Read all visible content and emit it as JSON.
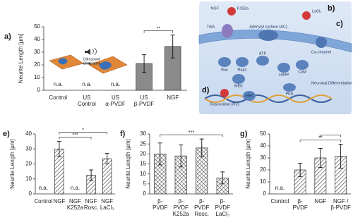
{
  "chart_data": [
    {
      "type": "bar",
      "label": "a)",
      "ylabel": "Neurite Length [μm]",
      "categories": [
        [
          "Control"
        ],
        [
          "US",
          "Control"
        ],
        [
          "US",
          "α-PVDF"
        ],
        [
          "US",
          "β-PVDF"
        ],
        [
          "NGF"
        ]
      ],
      "values": [
        null,
        null,
        null,
        21,
        34.5
      ],
      "errors": [
        null,
        null,
        null,
        7,
        9
      ],
      "na_label": "n.a.",
      "color": "#8a8a8a",
      "ylim": [
        0,
        50
      ],
      "yticks": [
        0,
        10,
        20,
        30,
        40,
        50
      ],
      "brackets": [
        {
          "from": 3,
          "to": 4,
          "text": "**"
        }
      ],
      "inset_text": [
        "Ultrasound",
        "Stimulation"
      ]
    },
    {
      "type": "bar",
      "label": "e)",
      "ylabel": "Neurite Length [μm]",
      "categories": [
        [
          "Control"
        ],
        [
          "NGF"
        ],
        [
          "NGF",
          "K252a"
        ],
        [
          "NGF",
          "Rosc."
        ],
        [
          "NGF",
          "LaCl₃"
        ]
      ],
      "values": [
        null,
        30,
        null,
        12.5,
        23.5
      ],
      "errors": [
        null,
        5,
        null,
        3.5,
        3.5
      ],
      "na_label": "n.a.",
      "pattern": "diagonal",
      "ylim": [
        0,
        40
      ],
      "yticks": [
        0,
        10,
        20,
        30,
        40
      ],
      "brackets": [
        {
          "from": 1,
          "to": 3,
          "text": "***"
        },
        {
          "from": 1,
          "to": 4,
          "text": "*"
        }
      ]
    },
    {
      "type": "bar",
      "label": "f)",
      "ylabel": "Neurite Length [μm]",
      "categories": [
        [
          "β-",
          "PVDF"
        ],
        [
          "β-",
          "PVDF",
          "K252a"
        ],
        [
          "β-",
          "PVDF",
          "Rosc."
        ],
        [
          "β-",
          "PVDF",
          "LaCl₃"
        ]
      ],
      "values": [
        20,
        19,
        23,
        8
      ],
      "errors": [
        5.5,
        5.5,
        4.5,
        3
      ],
      "pattern": "cross",
      "ylim": [
        0,
        30
      ],
      "yticks": [
        0,
        5,
        10,
        15,
        20,
        25,
        30
      ],
      "brackets": [
        {
          "from": 0,
          "to": 3,
          "text": "***"
        }
      ]
    },
    {
      "type": "bar",
      "label": "g)",
      "ylabel": "Neurite Length [μm]",
      "categories": [
        [
          "Control"
        ],
        [
          "β-",
          "PVDF"
        ],
        [
          "NGF"
        ],
        [
          "NGF /",
          "β-PVDF"
        ]
      ],
      "values": [
        null,
        20,
        30,
        31.5
      ],
      "errors": [
        null,
        5.5,
        8,
        10
      ],
      "na_label": "n.a.",
      "pattern": "diagonal",
      "ylim": [
        0,
        50
      ],
      "yticks": [
        0,
        10,
        20,
        30,
        40,
        50
      ],
      "brackets": [
        {
          "from": 1,
          "to": 3,
          "text": "**"
        },
        {
          "from": 2,
          "to": 3
        }
      ]
    }
  ],
  "diagram": {
    "panels": [
      "b)",
      "c)",
      "d)"
    ],
    "labels": [
      "NGF",
      "K252a",
      "LaCl₃",
      "TrkA",
      "Ras",
      "Rap1",
      "MEK",
      "ATP",
      "cAMP",
      "CaM",
      "PKA",
      "ERK",
      "Ca-channel",
      "Adenylyl cyclase (AC)",
      "Roscovitine (RV)",
      "Neuronal Differentiation"
    ]
  }
}
